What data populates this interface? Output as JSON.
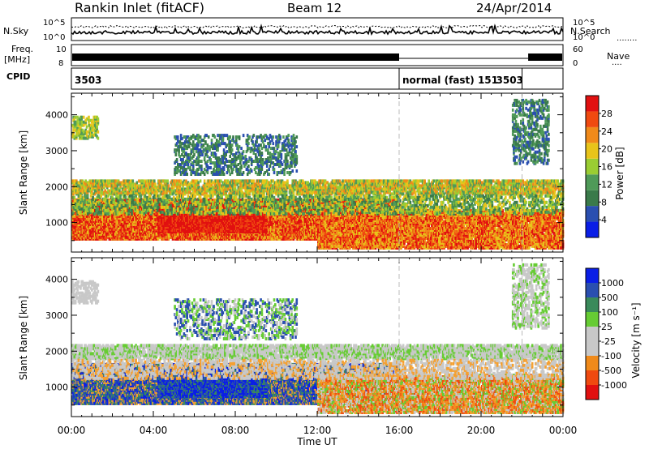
{
  "header": {
    "title": "Rankin Inlet (fitACF)",
    "beam": "Beam 12",
    "date": "24/Apr/2014"
  },
  "strip_labels": {
    "nsky": "N.Sky",
    "nsearch": "N.Search",
    "nsearch_dots": "........",
    "freq": "Freq.",
    "freq_unit": "[MHz]",
    "nave": "Nave",
    "nave_dots": "....",
    "cpid": "CPID",
    "noise_tick_top": "10^5",
    "noise_tick_bottom": "10^0",
    "freq_tick_top": "10",
    "freq_tick_bottom": "8",
    "nave_tick_top": "60",
    "nave_tick_bottom": "0"
  },
  "cpid_segments": [
    {
      "label": "3503",
      "start_h": 0,
      "end_h": 16
    },
    {
      "label": "normal (fast) 151",
      "start_h": 16,
      "end_h": 22
    },
    {
      "label": "3503",
      "start_h": 22,
      "end_h": 24
    }
  ],
  "colors": {
    "power_scale": [
      "#0a1ee6",
      "#2a4fb0",
      "#3a7a4a",
      "#4f9a58",
      "#9acd32",
      "#e8c41a",
      "#f08a1a",
      "#f04a10",
      "#e11010"
    ],
    "velocity_scale": [
      "#e11010",
      "#f04a10",
      "#f08a1a",
      "#f5a030",
      "#c8c8c8",
      "#c8c8c8",
      "#66cc33",
      "#3a8a5a",
      "#2a4fb0",
      "#0a1ee6"
    ],
    "band_gray": "#c8c8c8"
  },
  "chart_data": [
    {
      "type": "heatmap",
      "panel": "power",
      "ylabel": "Slant Range [km]",
      "xlabel": "Time UT",
      "x_ticks": [
        "00:00",
        "04:00",
        "08:00",
        "12:00",
        "16:00",
        "20:00",
        "00:00"
      ],
      "y_ticks": [
        1000,
        2000,
        3000,
        4000
      ],
      "ylim": [
        180,
        4600
      ],
      "xlim_hours": [
        0,
        24
      ],
      "colorbar_label": "Power [dB]",
      "colorbar_ticks": [
        4,
        8,
        12,
        16,
        20,
        24,
        28
      ],
      "colorbar_range": [
        0,
        30
      ]
    },
    {
      "type": "heatmap",
      "panel": "velocity",
      "ylabel": "Slant Range [km]",
      "xlabel": "Time UT",
      "x_ticks": [
        "00:00",
        "04:00",
        "08:00",
        "12:00",
        "16:00",
        "20:00",
        "00:00"
      ],
      "y_ticks": [
        1000,
        2000,
        3000,
        4000
      ],
      "ylim": [
        180,
        4600
      ],
      "xlim_hours": [
        0,
        24
      ],
      "colorbar_label": "Velocity [m s⁻¹]",
      "colorbar_ticks": [
        "1000",
        "500",
        "100",
        "25",
        "-25",
        "-100",
        "-500",
        "-1000"
      ]
    }
  ]
}
